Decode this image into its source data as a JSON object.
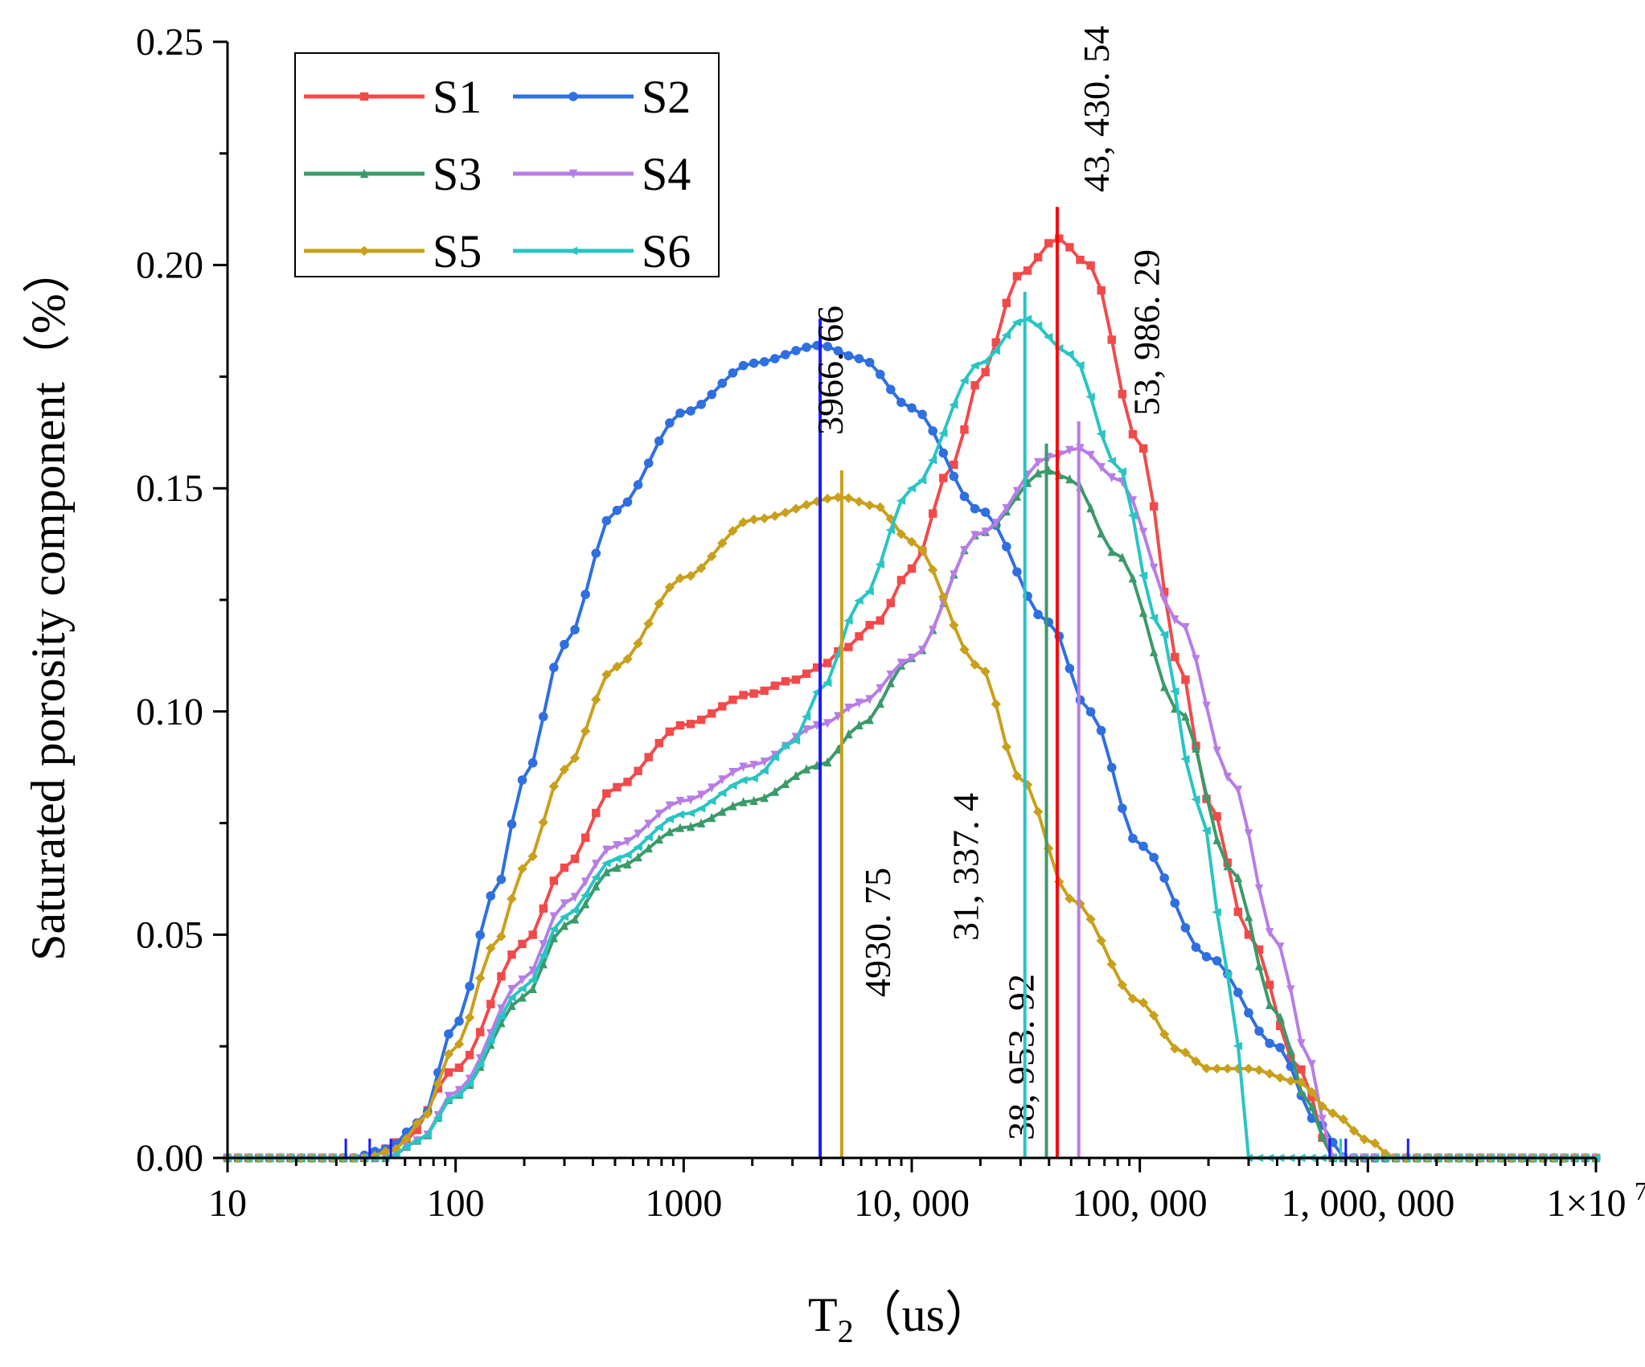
{
  "chart_data": {
    "type": "line",
    "xscale": "log",
    "xlim": [
      10,
      10000000
    ],
    "ylim": [
      0,
      0.25
    ],
    "xlabel_main": "T",
    "xlabel_sub": "2",
    "xlabel_unit": "（us）",
    "ylabel": "Saturated porosity component（%）",
    "x_tick_labels": [
      {
        "value": 10,
        "label": "10"
      },
      {
        "value": 100,
        "label": "100"
      },
      {
        "value": 1000,
        "label": "1000"
      },
      {
        "value": 10000,
        "label": "10, 000"
      },
      {
        "value": 100000,
        "label": "100, 000"
      },
      {
        "value": 1000000,
        "label": "1, 000, 000"
      }
    ],
    "x_last_tick": {
      "value": 10000000,
      "label_base": "1×10",
      "label_exp": "7"
    },
    "y_tick_labels": [
      {
        "value": 0,
        "label": "0.00"
      },
      {
        "value": 0.05,
        "label": "0.05"
      },
      {
        "value": 0.1,
        "label": "0.10"
      },
      {
        "value": 0.15,
        "label": "0.15"
      },
      {
        "value": 0.2,
        "label": "0.20"
      },
      {
        "value": 0.25,
        "label": "0.25"
      }
    ],
    "legend_position": "top-left",
    "series": [
      {
        "name": "S1",
        "color": "#f24a4a",
        "marker": "square",
        "anchors": [
          [
            10,
            0
          ],
          [
            40,
            0
          ],
          [
            60,
            0.004
          ],
          [
            100,
            0.02
          ],
          [
            200,
            0.048
          ],
          [
            300,
            0.065
          ],
          [
            500,
            0.083
          ],
          [
            1000,
            0.097
          ],
          [
            2000,
            0.104
          ],
          [
            3000,
            0.107
          ],
          [
            4000,
            0.11
          ],
          [
            5000,
            0.114
          ],
          [
            7000,
            0.12
          ],
          [
            10000,
            0.132
          ],
          [
            15000,
            0.155
          ],
          [
            20000,
            0.175
          ],
          [
            30000,
            0.198
          ],
          [
            43430,
            0.206
          ],
          [
            60000,
            0.2
          ],
          [
            100000,
            0.16
          ],
          [
            150000,
            0.11
          ],
          [
            200000,
            0.08
          ],
          [
            300000,
            0.05
          ],
          [
            500000,
            0.02
          ],
          [
            700000,
            0
          ],
          [
            10000000,
            0
          ]
        ],
        "peak_x": 43430.54,
        "peak_label": "43, 430. 54",
        "peak_top_y": 0.213
      },
      {
        "name": "S2",
        "color": "#2f6fe0",
        "marker": "circle",
        "anchors": [
          [
            10,
            0
          ],
          [
            35,
            0
          ],
          [
            50,
            0.002
          ],
          [
            70,
            0.008
          ],
          [
            100,
            0.03
          ],
          [
            150,
            0.06
          ],
          [
            200,
            0.085
          ],
          [
            300,
            0.115
          ],
          [
            500,
            0.145
          ],
          [
            1000,
            0.167
          ],
          [
            2000,
            0.178
          ],
          [
            3966,
            0.182
          ],
          [
            6000,
            0.179
          ],
          [
            10000,
            0.168
          ],
          [
            20000,
            0.145
          ],
          [
            40000,
            0.12
          ],
          [
            60000,
            0.1
          ],
          [
            100000,
            0.07
          ],
          [
            200000,
            0.045
          ],
          [
            400000,
            0.025
          ],
          [
            600000,
            0.008
          ],
          [
            800000,
            0
          ],
          [
            10000000,
            0
          ]
        ],
        "peak_x": 3966.66,
        "peak_label": "3966. 66",
        "peak_top_y": 0.188
      },
      {
        "name": "S3",
        "color": "#3a9a6a",
        "marker": "triangle-up",
        "anchors": [
          [
            10,
            0
          ],
          [
            50,
            0
          ],
          [
            70,
            0.004
          ],
          [
            100,
            0.014
          ],
          [
            200,
            0.036
          ],
          [
            300,
            0.052
          ],
          [
            500,
            0.065
          ],
          [
            1000,
            0.074
          ],
          [
            2000,
            0.08
          ],
          [
            4000,
            0.088
          ],
          [
            6000,
            0.097
          ],
          [
            10000,
            0.112
          ],
          [
            20000,
            0.14
          ],
          [
            38953,
            0.154
          ],
          [
            50000,
            0.152
          ],
          [
            80000,
            0.135
          ],
          [
            150000,
            0.1
          ],
          [
            250000,
            0.065
          ],
          [
            400000,
            0.032
          ],
          [
            550000,
            0.012
          ],
          [
            700000,
            0
          ],
          [
            10000000,
            0
          ]
        ],
        "peak_x": 38953.92,
        "peak_label": "38, 953. 92",
        "peak_top_y": 0.16
      },
      {
        "name": "S4",
        "color": "#b77de6",
        "marker": "triangle-down",
        "anchors": [
          [
            10,
            0
          ],
          [
            50,
            0
          ],
          [
            70,
            0.004
          ],
          [
            100,
            0.015
          ],
          [
            200,
            0.04
          ],
          [
            300,
            0.057
          ],
          [
            500,
            0.07
          ],
          [
            1000,
            0.08
          ],
          [
            2000,
            0.088
          ],
          [
            4000,
            0.097
          ],
          [
            6000,
            0.102
          ],
          [
            10000,
            0.112
          ],
          [
            20000,
            0.14
          ],
          [
            40000,
            0.157
          ],
          [
            53986,
            0.159
          ],
          [
            80000,
            0.152
          ],
          [
            150000,
            0.12
          ],
          [
            250000,
            0.085
          ],
          [
            400000,
            0.048
          ],
          [
            550000,
            0.022
          ],
          [
            700000,
            0
          ],
          [
            10000000,
            0
          ]
        ],
        "peak_x": 53986.29,
        "peak_label": "53, 986. 29",
        "peak_top_y": 0.165
      },
      {
        "name": "S5",
        "color": "#c9a01c",
        "marker": "diamond",
        "anchors": [
          [
            10,
            0
          ],
          [
            40,
            0
          ],
          [
            55,
            0.002
          ],
          [
            70,
            0.008
          ],
          [
            100,
            0.025
          ],
          [
            150,
            0.048
          ],
          [
            200,
            0.065
          ],
          [
            300,
            0.087
          ],
          [
            500,
            0.11
          ],
          [
            1000,
            0.13
          ],
          [
            2000,
            0.143
          ],
          [
            4930,
            0.148
          ],
          [
            7000,
            0.146
          ],
          [
            10000,
            0.138
          ],
          [
            20000,
            0.11
          ],
          [
            30000,
            0.085
          ],
          [
            50000,
            0.058
          ],
          [
            100000,
            0.035
          ],
          [
            150000,
            0.024
          ],
          [
            200000,
            0.02
          ],
          [
            300000,
            0.02
          ],
          [
            500000,
            0.017
          ],
          [
            700000,
            0.01
          ],
          [
            1000000,
            0.004
          ],
          [
            1300000,
            0
          ],
          [
            10000000,
            0
          ]
        ],
        "peak_x": 4930.75,
        "peak_label": "4930. 75",
        "peak_top_y": 0.154
      },
      {
        "name": "S6",
        "color": "#2ac4c4",
        "marker": "triangle-left",
        "anchors": [
          [
            10,
            0
          ],
          [
            50,
            0
          ],
          [
            70,
            0.004
          ],
          [
            100,
            0.014
          ],
          [
            200,
            0.038
          ],
          [
            300,
            0.054
          ],
          [
            500,
            0.067
          ],
          [
            1000,
            0.077
          ],
          [
            2000,
            0.085
          ],
          [
            3000,
            0.093
          ],
          [
            4000,
            0.105
          ],
          [
            6000,
            0.125
          ],
          [
            10000,
            0.15
          ],
          [
            20000,
            0.178
          ],
          [
            31337,
            0.188
          ],
          [
            50000,
            0.18
          ],
          [
            80000,
            0.155
          ],
          [
            120000,
            0.12
          ],
          [
            180000,
            0.08
          ],
          [
            250000,
            0.04
          ],
          [
            300000,
            0
          ],
          [
            10000000,
            0
          ]
        ],
        "peak_x": 31337.4,
        "peak_label": "31, 337. 4",
        "peak_top_y": 0.194
      }
    ]
  }
}
